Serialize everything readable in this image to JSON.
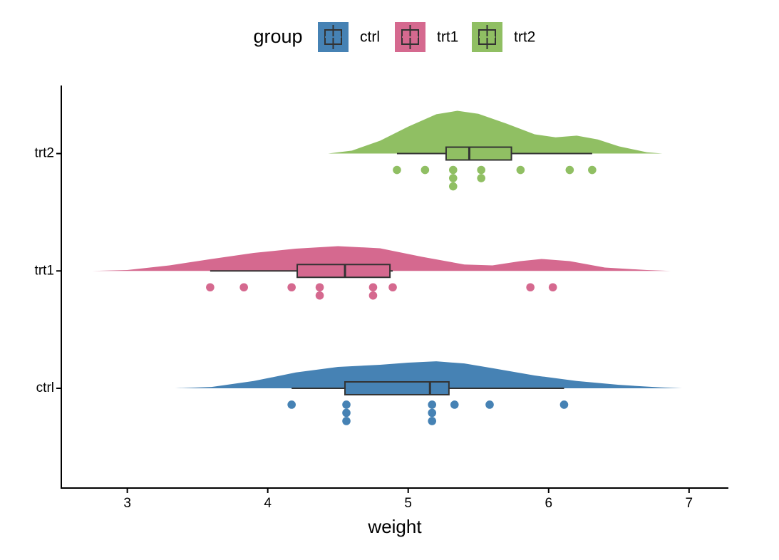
{
  "chart_data": {
    "type": "raincloud",
    "x_label": "weight",
    "legend_title": "group",
    "legend_position": "top",
    "xlim": [
      2.53,
      7.28
    ],
    "xticks": [
      3,
      4,
      5,
      6,
      7
    ],
    "ylim": [
      0.15,
      3.58
    ],
    "series": [
      {
        "name": "ctrl",
        "color": "#4682b4",
        "box": {
          "min": 4.17,
          "q1": 4.55,
          "median": 5.155,
          "q3": 5.29,
          "max": 6.11
        },
        "points": [
          4.17,
          4.56,
          4.56,
          4.56,
          5.17,
          5.17,
          5.17,
          5.33,
          5.58,
          6.11
        ],
        "density": {
          "x": [
            3.34,
            3.6,
            3.9,
            4.2,
            4.5,
            4.8,
            5.0,
            5.2,
            5.4,
            5.6,
            5.9,
            6.2,
            6.5,
            6.8,
            6.95
          ],
          "y": [
            0,
            0.03,
            0.17,
            0.37,
            0.5,
            0.55,
            0.6,
            0.63,
            0.58,
            0.47,
            0.3,
            0.17,
            0.08,
            0.02,
            0
          ]
        }
      },
      {
        "name": "trt1",
        "color": "#d5698f",
        "box": {
          "min": 3.59,
          "q1": 4.21,
          "median": 4.55,
          "q3": 4.87,
          "max": 4.89
        },
        "points": [
          3.59,
          3.83,
          4.17,
          4.37,
          4.37,
          4.75,
          4.75,
          4.89,
          5.87,
          6.03
        ],
        "density": {
          "x": [
            2.75,
            3.0,
            3.3,
            3.6,
            3.9,
            4.2,
            4.5,
            4.8,
            5.1,
            5.4,
            5.6,
            5.8,
            5.95,
            6.15,
            6.4,
            6.7,
            6.87
          ],
          "y": [
            0,
            0.02,
            0.13,
            0.28,
            0.42,
            0.52,
            0.58,
            0.53,
            0.33,
            0.15,
            0.13,
            0.23,
            0.28,
            0.23,
            0.08,
            0.02,
            0
          ]
        }
      },
      {
        "name": "trt2",
        "color": "#90bf63",
        "box": {
          "min": 4.92,
          "q1": 5.27,
          "median": 5.435,
          "q3": 5.735,
          "max": 6.31
        },
        "points": [
          4.92,
          5.12,
          5.32,
          5.32,
          5.32,
          5.52,
          5.52,
          5.8,
          6.15,
          6.31
        ],
        "density": {
          "x": [
            4.43,
            4.6,
            4.8,
            5.0,
            5.2,
            5.35,
            5.5,
            5.7,
            5.9,
            6.05,
            6.2,
            6.35,
            6.5,
            6.7,
            6.81
          ],
          "y": [
            0,
            0.07,
            0.3,
            0.63,
            0.92,
            1,
            0.93,
            0.7,
            0.45,
            0.38,
            0.42,
            0.33,
            0.17,
            0.03,
            0
          ]
        }
      }
    ]
  }
}
